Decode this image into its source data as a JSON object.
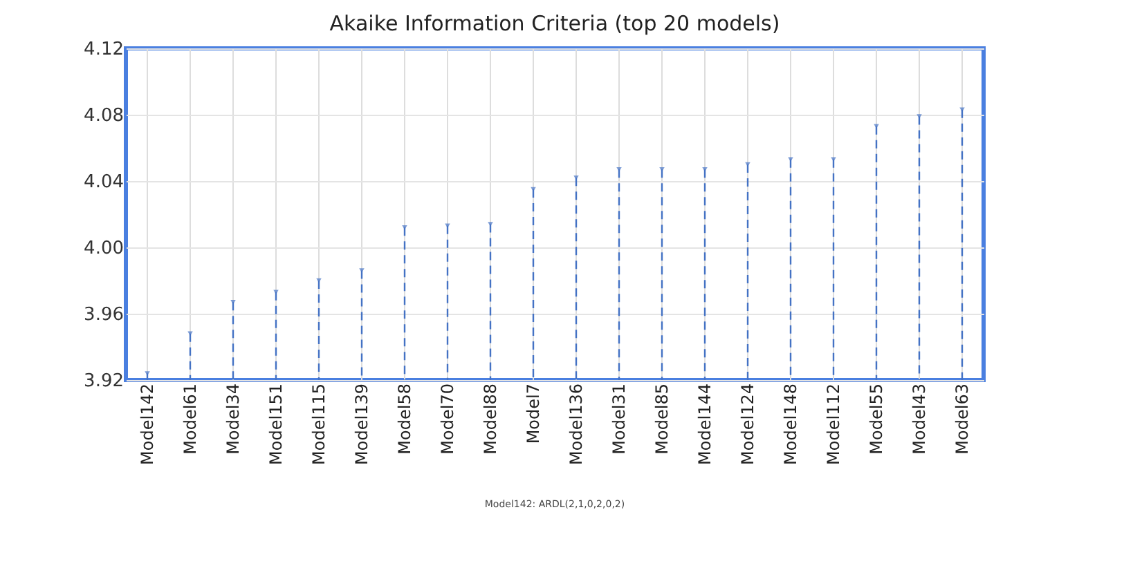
{
  "chart_data": {
    "type": "lollipop",
    "title": "Akaike Information Criteria (top 20 models)",
    "categories": [
      "Model142",
      "Model61",
      "Model34",
      "Model151",
      "Model115",
      "Model139",
      "Model58",
      "Model70",
      "Model88",
      "Model7",
      "Model136",
      "Model31",
      "Model85",
      "Model144",
      "Model124",
      "Model148",
      "Model112",
      "Model55",
      "Model43",
      "Model63"
    ],
    "values": [
      3.924,
      3.948,
      3.967,
      3.973,
      3.98,
      3.986,
      4.012,
      4.013,
      4.014,
      4.035,
      4.042,
      4.047,
      4.047,
      4.047,
      4.05,
      4.053,
      4.053,
      4.073,
      4.079,
      4.083
    ],
    "color": "#4472c4",
    "ylim": [
      3.92,
      4.12
    ],
    "yticks": [
      {
        "value": 3.92,
        "label": "3.92"
      },
      {
        "value": 3.96,
        "label": "3.96"
      },
      {
        "value": 4.0,
        "label": "4.00"
      },
      {
        "value": 4.04,
        "label": "4.04"
      },
      {
        "value": 4.08,
        "label": "4.08"
      },
      {
        "value": 4.12,
        "label": "4.12"
      }
    ],
    "grid": true,
    "marker": "triangle",
    "line_style": "dashed",
    "annotations": [
      "Model142: ARDL(2,1,0,2,0,2)"
    ]
  }
}
